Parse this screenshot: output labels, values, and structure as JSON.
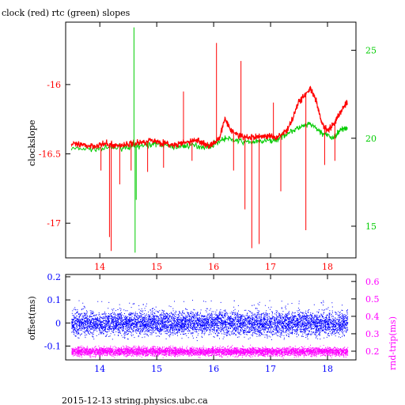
{
  "page": {
    "title": "clock (red) rtc (green) slopes",
    "footer": "2015-12-13 string.physics.ubc.ca"
  },
  "colors": {
    "clock": "#ff0000",
    "rtc": "#00cc00",
    "offset": "#0000ff",
    "roundtrip": "#ff00ff",
    "axis": "#000000"
  },
  "chart_data": [
    {
      "type": "line",
      "title": "clock (red) rtc (green) slopes",
      "xlabel": "",
      "ylabel": "clockslope",
      "y2label": "",
      "xlim": [
        13.4,
        18.5
      ],
      "ylim": [
        -17.25,
        -15.55
      ],
      "y2lim": [
        13.2,
        26.6
      ],
      "xticks": [
        14,
        15,
        16,
        17,
        18
      ],
      "yticks": [
        -17,
        -16.5,
        -16
      ],
      "y2ticks": [
        15,
        20,
        25
      ],
      "grid": false,
      "series": [
        {
          "name": "clock",
          "axis": "left",
          "x": [
            13.5,
            13.7,
            13.9,
            14.1,
            14.3,
            14.5,
            14.7,
            14.9,
            15.1,
            15.3,
            15.5,
            15.7,
            15.8,
            15.9,
            16.0,
            16.1,
            16.2,
            16.3,
            16.5,
            16.7,
            16.9,
            17.1,
            17.3,
            17.5,
            17.7,
            17.8,
            17.9,
            18.0,
            18.1,
            18.2,
            18.3,
            18.35
          ],
          "y": [
            -16.43,
            -16.44,
            -16.44,
            -16.43,
            -16.44,
            -16.43,
            -16.42,
            -16.4,
            -16.42,
            -16.44,
            -16.42,
            -16.4,
            -16.42,
            -16.44,
            -16.43,
            -16.38,
            -16.25,
            -16.33,
            -16.38,
            -16.38,
            -16.37,
            -16.38,
            -16.33,
            -16.12,
            -16.03,
            -16.12,
            -16.28,
            -16.33,
            -16.29,
            -16.22,
            -16.15,
            -16.13
          ]
        },
        {
          "name": "rtc",
          "axis": "right",
          "x": [
            13.5,
            14.0,
            14.5,
            14.8,
            15.0,
            15.3,
            15.6,
            15.9,
            16.2,
            16.5,
            16.8,
            17.1,
            17.3,
            17.5,
            17.7,
            17.9,
            18.1,
            18.2,
            18.3,
            18.35
          ],
          "y": [
            19.4,
            19.4,
            19.5,
            19.6,
            19.7,
            19.5,
            19.6,
            19.5,
            20.0,
            19.8,
            19.8,
            19.9,
            20.3,
            20.6,
            20.8,
            20.3,
            20.0,
            20.4,
            20.6,
            20.6
          ]
        }
      ],
      "spikes": [
        {
          "series": "clock",
          "x": 14.02,
          "y": -16.62
        },
        {
          "series": "clock",
          "x": 14.17,
          "y": -17.1
        },
        {
          "series": "clock",
          "x": 14.2,
          "y": -17.2
        },
        {
          "series": "clock",
          "x": 14.35,
          "y": -16.72
        },
        {
          "series": "clock",
          "x": 14.55,
          "y": -16.62
        },
        {
          "series": "clock",
          "x": 14.84,
          "y": -16.63
        },
        {
          "series": "clock",
          "x": 15.12,
          "y": -16.6
        },
        {
          "series": "clock",
          "x": 15.47,
          "y": -16.05
        },
        {
          "series": "clock",
          "x": 15.62,
          "y": -16.55
        },
        {
          "series": "clock",
          "x": 16.05,
          "y": -15.7
        },
        {
          "series": "clock",
          "x": 16.35,
          "y": -16.62
        },
        {
          "series": "clock",
          "x": 16.48,
          "y": -15.83
        },
        {
          "series": "clock",
          "x": 16.55,
          "y": -16.9
        },
        {
          "series": "clock",
          "x": 16.67,
          "y": -17.18
        },
        {
          "series": "clock",
          "x": 16.8,
          "y": -17.15
        },
        {
          "series": "clock",
          "x": 17.05,
          "y": -16.13
        },
        {
          "series": "clock",
          "x": 17.18,
          "y": -16.77
        },
        {
          "series": "clock",
          "x": 17.55,
          "y": -16.13
        },
        {
          "series": "clock",
          "x": 17.62,
          "y": -17.05
        },
        {
          "series": "clock",
          "x": 17.95,
          "y": -16.58
        },
        {
          "series": "clock",
          "x": 18.13,
          "y": -16.55
        },
        {
          "series": "rtc",
          "x": 14.6,
          "y": 26.3
        },
        {
          "series": "rtc",
          "x": 14.62,
          "y": 13.5
        },
        {
          "series": "rtc",
          "x": 14.64,
          "y": 16.5
        }
      ]
    },
    {
      "type": "scatter",
      "title": "",
      "xlabel": "",
      "ylabel": "offset(ms)",
      "y2label": "rnd-trip(ms)",
      "xlim": [
        13.4,
        18.5
      ],
      "ylim": [
        -0.16,
        0.21
      ],
      "y2lim": [
        0.15,
        0.64
      ],
      "xticks": [
        14,
        15,
        16,
        17,
        18
      ],
      "yticks": [
        -0.1,
        0,
        0.1,
        0.2
      ],
      "y2ticks": [
        0.2,
        0.3,
        0.4,
        0.5,
        0.6
      ],
      "grid": false,
      "series": [
        {
          "name": "offset",
          "axis": "left",
          "x_range": [
            13.5,
            18.35
          ],
          "center": 0.0,
          "spread": 0.025,
          "outlier_max": 0.1
        },
        {
          "name": "rnd-trip",
          "axis": "right",
          "x_range": [
            13.5,
            18.35
          ],
          "center": 0.2,
          "spread": 0.012
        }
      ]
    }
  ]
}
